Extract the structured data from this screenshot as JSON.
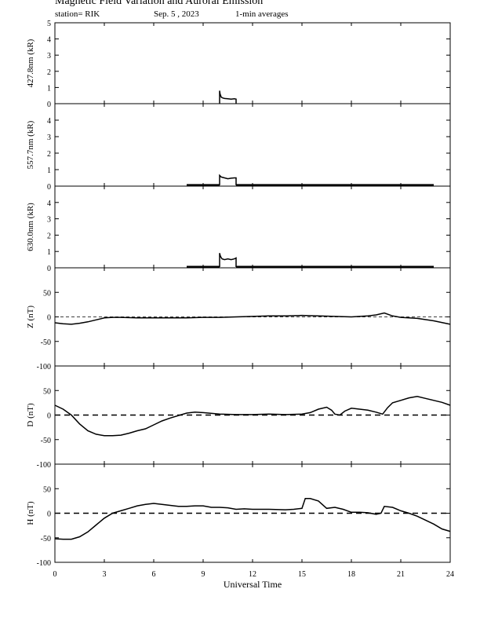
{
  "header": {
    "title": "Magnetic Field Variation and Auroral Emission",
    "station": "station= RIK",
    "date": "Sep. 5  , 2023",
    "averaging": "1-min averages"
  },
  "chart_data": {
    "type": "line",
    "xlabel": "Universal Time",
    "xlim": [
      0,
      24
    ],
    "xticks": [
      0,
      3,
      6,
      9,
      12,
      15,
      18,
      21,
      24
    ],
    "panels": [
      {
        "id": "p4278",
        "ylabel": "427.8nm (kR)",
        "ylim": [
          0,
          5
        ],
        "yticks": [
          0,
          1,
          2,
          3,
          4,
          5
        ],
        "zero_line": false,
        "series": [
          {
            "x": [
              10.0,
              10.0,
              10.03,
              10.1,
              10.2,
              10.3,
              10.5,
              10.7,
              10.9,
              11.0,
              11.0
            ],
            "y": [
              0.0,
              0.8,
              0.6,
              0.4,
              0.35,
              0.32,
              0.3,
              0.28,
              0.3,
              0.28,
              0.0
            ]
          }
        ]
      },
      {
        "id": "p5577",
        "ylabel": "557.7nm (kR)",
        "ylim": [
          0,
          5
        ],
        "yticks": [
          0,
          1,
          2,
          3,
          4
        ],
        "zero_line": false,
        "series": [
          {
            "x": [
              8.0,
              10.0
            ],
            "y": [
              0.05,
              0.05
            ]
          },
          {
            "x": [
              10.0,
              10.0,
              10.1,
              10.3,
              10.5,
              10.7,
              10.9,
              11.0,
              11.0
            ],
            "y": [
              0.05,
              0.65,
              0.55,
              0.5,
              0.45,
              0.48,
              0.5,
              0.5,
              0.05
            ]
          },
          {
            "x": [
              11.0,
              23.0
            ],
            "y": [
              0.05,
              0.05
            ]
          }
        ]
      },
      {
        "id": "p6300",
        "ylabel": "630.0nm (kR)",
        "ylim": [
          0,
          5
        ],
        "yticks": [
          0,
          1,
          2,
          3,
          4
        ],
        "zero_line": false,
        "series": [
          {
            "x": [
              8.0,
              10.0
            ],
            "y": [
              0.05,
              0.05
            ]
          },
          {
            "x": [
              10.0,
              10.0,
              10.05,
              10.15,
              10.3,
              10.5,
              10.7,
              10.9,
              11.0,
              11.0
            ],
            "y": [
              0.05,
              0.9,
              0.7,
              0.55,
              0.5,
              0.55,
              0.5,
              0.55,
              0.6,
              0.05
            ]
          },
          {
            "x": [
              11.0,
              23.0
            ],
            "y": [
              0.05,
              0.05
            ]
          }
        ]
      },
      {
        "id": "pZ",
        "ylabel": "Z (nT)",
        "ylim": [
          -100,
          100
        ],
        "yticks": [
          -100,
          -50,
          0,
          50
        ],
        "zero_line": true,
        "series": [
          {
            "x": [
              0,
              0.5,
              1,
              1.5,
              2,
              2.5,
              3,
              3.5,
              4,
              5,
              6,
              7,
              8,
              9,
              10,
              11,
              12,
              13,
              14,
              15,
              16,
              17,
              18,
              19,
              19.5,
              20,
              20.5,
              21,
              22,
              23,
              24
            ],
            "y": [
              -12,
              -14,
              -15,
              -13,
              -10,
              -6,
              -2,
              -1,
              -1,
              -2,
              -2,
              -2,
              -2,
              -1,
              -1,
              0,
              1,
              2,
              2,
              3,
              2,
              1,
              0,
              2,
              4,
              8,
              2,
              -1,
              -3,
              -8,
              -15
            ]
          }
        ]
      },
      {
        "id": "pD",
        "ylabel": "D (nT)",
        "ylim": [
          -100,
          100
        ],
        "yticks": [
          -100,
          -50,
          0,
          50
        ],
        "zero_line": true,
        "series": [
          {
            "x": [
              0,
              0.5,
              1,
              1.5,
              2,
              2.5,
              3,
              3.5,
              4,
              4.5,
              5,
              5.5,
              6,
              6.5,
              7,
              7.5,
              8,
              8.5,
              9,
              10,
              11,
              12,
              13,
              14,
              15,
              15.5,
              16,
              16.5,
              16.8,
              17,
              17.3,
              17.6,
              18,
              18.5,
              19,
              19.5,
              19.9,
              20.2,
              20.5,
              21,
              21.5,
              22,
              22.5,
              23,
              23.5,
              24
            ],
            "y": [
              20,
              12,
              0,
              -18,
              -32,
              -39,
              -42,
              -42,
              -41,
              -37,
              -32,
              -28,
              -20,
              -12,
              -6,
              -1,
              4,
              6,
              5,
              2,
              1,
              1,
              2,
              1,
              2,
              5,
              12,
              16,
              10,
              2,
              0,
              8,
              14,
              12,
              10,
              6,
              2,
              15,
              25,
              30,
              35,
              38,
              34,
              30,
              26,
              20
            ]
          }
        ]
      },
      {
        "id": "pH",
        "ylabel": "H (nT)",
        "ylim": [
          -100,
          100
        ],
        "yticks": [
          -100,
          -50,
          0,
          50
        ],
        "zero_line": true,
        "series": [
          {
            "x": [
              0,
              0.5,
              1,
              1.5,
              2,
              2.5,
              3,
              3.5,
              4,
              4.5,
              5,
              5.5,
              6,
              6.5,
              7,
              7.5,
              8,
              8.5,
              9,
              9.5,
              10,
              10.5,
              11,
              11.5,
              12,
              13,
              14,
              14.5,
              15,
              15.2,
              15.5,
              16,
              16.5,
              17,
              17.5,
              18,
              18.5,
              19,
              19.5,
              19.8,
              20,
              20.5,
              21,
              21.5,
              22,
              22.5,
              23,
              23.5,
              24
            ],
            "y": [
              -52,
              -53,
              -53,
              -48,
              -38,
              -24,
              -10,
              0,
              5,
              10,
              15,
              18,
              20,
              18,
              16,
              14,
              14,
              15,
              15,
              12,
              12,
              11,
              8,
              9,
              8,
              8,
              7,
              8,
              10,
              30,
              30,
              25,
              10,
              12,
              8,
              2,
              2,
              1,
              -2,
              0,
              14,
              12,
              5,
              0,
              -6,
              -14,
              -22,
              -32,
              -37
            ]
          }
        ]
      }
    ]
  }
}
